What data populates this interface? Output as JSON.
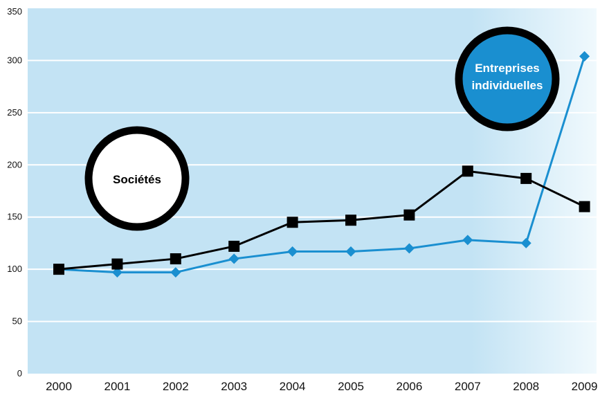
{
  "chart_data": {
    "type": "line",
    "x": [
      "2000",
      "2001",
      "2002",
      "2003",
      "2004",
      "2005",
      "2006",
      "2007",
      "2008",
      "2009"
    ],
    "ylim": [
      0,
      350
    ],
    "yticks": [
      "0",
      "50",
      "100",
      "150",
      "200",
      "250",
      "300",
      "350"
    ],
    "grid": true,
    "series": [
      {
        "name": "Sociétés",
        "values": [
          100,
          105,
          110,
          122,
          145,
          147,
          152,
          194,
          187,
          160
        ],
        "color": "#000000",
        "marker": "square"
      },
      {
        "name": "Entreprises individuelles",
        "values": [
          100,
          97,
          97,
          110,
          117,
          117,
          120,
          128,
          125,
          304
        ],
        "color": "#1a8fd0",
        "marker": "diamond"
      }
    ],
    "annotations": {
      "societes": {
        "label": "Sociétés",
        "fill": "#ffffff",
        "ring": "#000000",
        "text_color": "#000000"
      },
      "entreprises": {
        "line1": "Entreprises",
        "line2": "individuelles",
        "fill": "#1a8fd0",
        "ring": "#000000",
        "text_color": "#ffffff"
      }
    },
    "colors": {
      "plot_bg": "#c3e3f4",
      "plot_bg_fade": "#f0f9fd",
      "grid": "#ffffff"
    }
  }
}
